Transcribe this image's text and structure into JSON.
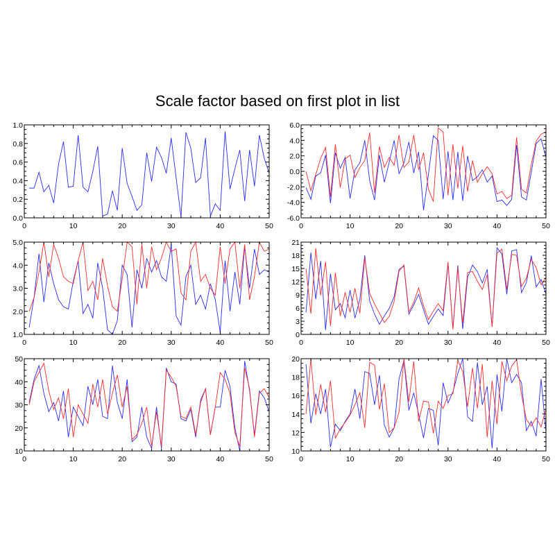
{
  "title": "Scale factor based on first plot in list",
  "colors": {
    "series_1": "#2a2aff",
    "series_2": "#ff2a2a",
    "axis": "#000000"
  },
  "chart_data": [
    {
      "type": "line",
      "xlim": [
        0,
        50
      ],
      "ylim": [
        0,
        1
      ],
      "x_ticks": [
        0,
        10,
        20,
        30,
        40,
        50
      ],
      "y_ticks": [
        0.0,
        0.2,
        0.4,
        0.6,
        0.8,
        1.0
      ],
      "y_tick_labels": [
        "0.0",
        "0.2",
        "0.4",
        "0.6",
        "0.8",
        "1.0"
      ],
      "x": [
        1,
        2,
        3,
        4,
        5,
        6,
        7,
        8,
        9,
        10,
        11,
        12,
        13,
        14,
        15,
        16,
        17,
        18,
        19,
        20,
        21,
        22,
        23,
        24,
        25,
        26,
        27,
        28,
        29,
        30,
        31,
        32,
        33,
        34,
        35,
        36,
        37,
        38,
        39,
        40,
        41,
        42,
        43,
        44,
        45,
        46,
        47,
        48,
        49,
        50
      ],
      "series": [
        {
          "values": [
            0.32,
            0.32,
            0.49,
            0.28,
            0.35,
            0.16,
            0.58,
            0.82,
            0.33,
            0.34,
            0.89,
            0.33,
            0.28,
            0.5,
            0.77,
            0.02,
            0.04,
            0.29,
            0.08,
            0.75,
            0.37,
            0.23,
            0.08,
            0.14,
            0.7,
            0.39,
            0.76,
            0.65,
            0.48,
            0.86,
            0.43,
            0.01,
            0.92,
            0.75,
            0.38,
            0.43,
            0.86,
            0.02,
            0.15,
            0.08,
            0.93,
            0.31,
            0.53,
            0.73,
            0.18,
            0.73,
            0.34,
            0.89,
            0.64,
            0.48
          ]
        }
      ]
    },
    {
      "type": "line",
      "xlim": [
        0,
        50
      ],
      "ylim": [
        -6,
        6
      ],
      "x_ticks": [
        0,
        10,
        20,
        30,
        40,
        50
      ],
      "y_ticks": [
        -6,
        -4,
        -2,
        0,
        2,
        4,
        6
      ],
      "y_tick_labels": [
        "-6.0",
        "-4.0",
        "-2.0",
        "0.0",
        "2.0",
        "4.0",
        "6.0"
      ],
      "x": [
        1,
        2,
        3,
        4,
        5,
        6,
        7,
        8,
        9,
        10,
        11,
        12,
        13,
        14,
        15,
        16,
        17,
        18,
        19,
        20,
        21,
        22,
        23,
        24,
        25,
        26,
        27,
        28,
        29,
        30,
        31,
        32,
        33,
        34,
        35,
        36,
        37,
        38,
        39,
        40,
        41,
        42,
        43,
        44,
        45,
        46,
        47,
        48,
        49,
        50
      ],
      "series": [
        {
          "values": [
            -2.1,
            -3.6,
            -0.6,
            -0.2,
            2.1,
            -4.1,
            2.4,
            0.4,
            1.8,
            -3.5,
            0.2,
            1.1,
            4.0,
            -1.2,
            -3.7,
            2.1,
            -1.4,
            1.2,
            4.0,
            -0.3,
            1.1,
            3.8,
            -0.2,
            2.5,
            -5.0,
            -0.4,
            4.6,
            4.0,
            -3.6,
            2.6,
            -3.7,
            2.5,
            -3.8,
            2.0,
            -1.2,
            -0.7,
            0.2,
            -1.4,
            -0.6,
            -3.9,
            -3.7,
            -4.4,
            -3.6,
            3.4,
            -3.3,
            -3.7,
            -0.1,
            3.6,
            4.2,
            1.8
          ]
        },
        {
          "values": [
            0.0,
            -2.5,
            -0.4,
            1.7,
            3.1,
            -3.3,
            3.5,
            -2.1,
            1.6,
            2.1,
            -0.8,
            0.5,
            1.4,
            5.0,
            -2.8,
            3.2,
            0.5,
            1.8,
            0.8,
            4.7,
            0.5,
            1.2,
            4.7,
            0.2,
            2.4,
            -2.3,
            -3.9,
            5.6,
            5.1,
            -3.1,
            3.5,
            -2.2,
            3.3,
            -2.6,
            1.4,
            -1.4,
            -0.3,
            0.6,
            -0.3,
            -2.9,
            -2.6,
            -3.5,
            -3.1,
            4.4,
            -2.3,
            -2.8,
            0.9,
            3.9,
            4.8,
            5.1
          ]
        }
      ]
    },
    {
      "type": "line",
      "xlim": [
        0,
        50
      ],
      "ylim": [
        1,
        5
      ],
      "x_ticks": [
        0,
        10,
        20,
        30,
        40,
        50
      ],
      "y_ticks": [
        1,
        2,
        3,
        4,
        5
      ],
      "y_tick_labels": [
        "1.0",
        "2.0",
        "3.0",
        "4.0",
        "5.0"
      ],
      "x": [
        1,
        2,
        3,
        4,
        5,
        6,
        7,
        8,
        9,
        10,
        11,
        12,
        13,
        14,
        15,
        16,
        17,
        18,
        19,
        20,
        21,
        22,
        23,
        24,
        25,
        26,
        27,
        28,
        29,
        30,
        31,
        32,
        33,
        34,
        35,
        36,
        37,
        38,
        39,
        40,
        41,
        42,
        43,
        44,
        45,
        46,
        47,
        48,
        49,
        50
      ],
      "series": [
        {
          "values": [
            1.3,
            2.6,
            4.5,
            2.4,
            4.1,
            3.2,
            2.5,
            2.2,
            2.1,
            3.3,
            4.2,
            1.9,
            2.3,
            1.7,
            4.1,
            3.0,
            1.2,
            1.0,
            1.6,
            4.0,
            3.6,
            1.3,
            3.8,
            3.0,
            4.3,
            3.7,
            4.2,
            3.5,
            3.3,
            4.9,
            1.8,
            1.4,
            3.5,
            4.0,
            2.3,
            2.7,
            2.1,
            3.2,
            2.5,
            1.1,
            4.2,
            2.0,
            3.7,
            2.3,
            4.8,
            3.0,
            4.7,
            3.6,
            3.8,
            3.7
          ]
        },
        {
          "values": [
            2.0,
            2.6,
            3.7,
            5.0,
            3.5,
            4.9,
            4.3,
            3.5,
            3.3,
            3.2,
            4.2,
            5.0,
            2.9,
            3.3,
            2.5,
            4.3,
            3.1,
            2.2,
            2.0,
            3.4,
            5.0,
            4.8,
            2.3,
            4.9,
            3.0,
            4.8,
            3.8,
            4.3,
            5.0,
            4.6,
            4.7,
            2.8,
            2.5,
            4.6,
            5.0,
            3.3,
            3.6,
            3.0,
            2.7,
            4.8,
            3.2,
            4.7,
            5.0,
            3.0,
            4.9,
            2.5,
            3.5,
            5.0,
            4.6,
            4.7
          ]
        }
      ]
    },
    {
      "type": "line",
      "xlim": [
        0,
        50
      ],
      "ylim": [
        0,
        21
      ],
      "x_ticks": [
        0,
        10,
        20,
        30,
        40,
        50
      ],
      "y_ticks": [
        0,
        3,
        6,
        9,
        12,
        15,
        18,
        21
      ],
      "y_tick_labels": [
        "0",
        "3",
        "6",
        "9",
        "12",
        "15",
        "18",
        "21"
      ],
      "x": [
        1,
        2,
        3,
        4,
        5,
        6,
        7,
        8,
        9,
        10,
        11,
        12,
        13,
        14,
        15,
        16,
        17,
        18,
        19,
        20,
        21,
        22,
        23,
        24,
        25,
        26,
        27,
        28,
        29,
        30,
        31,
        32,
        33,
        34,
        35,
        36,
        37,
        38,
        39,
        40,
        41,
        42,
        43,
        44,
        45,
        46,
        47,
        48,
        49,
        50
      ],
      "series": [
        {
          "values": [
            5.0,
            18.6,
            8.0,
            16.7,
            1.0,
            13.8,
            5.6,
            7.0,
            3.8,
            10.1,
            3.7,
            8.0,
            18.0,
            7.6,
            4.6,
            2.3,
            4.2,
            5.9,
            8.6,
            14.8,
            15.5,
            4.6,
            6.7,
            9.1,
            5.6,
            2.3,
            4.1,
            5.8,
            4.3,
            16.1,
            1.4,
            15.7,
            1.2,
            13.0,
            15.8,
            14.3,
            11.7,
            14.8,
            1.8,
            19.7,
            18.3,
            9.1,
            19.0,
            19.3,
            9.5,
            11.8,
            17.9,
            10.8,
            12.5,
            9.2
          ]
        },
        {
          "values": [
            15.0,
            4.7,
            19.6,
            8.9,
            16.5,
            1.9,
            14.0,
            4.2,
            9.6,
            5.0,
            10.5,
            4.8,
            17.4,
            9.4,
            6.9,
            4.8,
            2.7,
            4.1,
            7.5,
            14.4,
            15.8,
            5.1,
            7.3,
            10.6,
            6.5,
            3.4,
            5.3,
            7.0,
            5.4,
            16.5,
            1.1,
            15.1,
            2.5,
            14.1,
            14.3,
            12.1,
            10.2,
            13.6,
            1.7,
            18.5,
            19.4,
            10.2,
            18.2,
            18.0,
            10.9,
            12.8,
            17.1,
            15.2,
            11.3,
            12.9
          ]
        }
      ]
    },
    {
      "type": "line",
      "xlim": [
        0,
        50
      ],
      "ylim": [
        10,
        50
      ],
      "x_ticks": [
        0,
        10,
        20,
        30,
        40,
        50
      ],
      "y_ticks": [
        10,
        20,
        30,
        40,
        50
      ],
      "y_tick_labels": [
        "10",
        "20",
        "30",
        "40",
        "50"
      ],
      "x": [
        1,
        2,
        3,
        4,
        5,
        6,
        7,
        8,
        9,
        10,
        11,
        12,
        13,
        14,
        15,
        16,
        17,
        18,
        19,
        20,
        21,
        22,
        23,
        24,
        25,
        26,
        27,
        28,
        29,
        30,
        31,
        32,
        33,
        34,
        35,
        36,
        37,
        38,
        39,
        40,
        41,
        42,
        43,
        44,
        45,
        46,
        47,
        48,
        49,
        50
      ],
      "series": [
        {
          "values": [
            31.0,
            41.0,
            47.0,
            35.0,
            27.0,
            31.0,
            23.0,
            36.0,
            16.0,
            29.0,
            25.0,
            21.0,
            38.0,
            30.0,
            41.0,
            25.0,
            24.0,
            47.0,
            31.0,
            24.0,
            41.0,
            14.0,
            16.0,
            29.0,
            16.0,
            11.0,
            29.0,
            11.0,
            46.0,
            40.0,
            39.0,
            24.0,
            23.0,
            28.0,
            16.0,
            32.0,
            37.0,
            17.0,
            29.0,
            29.0,
            45.0,
            38.0,
            20.0,
            10.0,
            49.0,
            36.0,
            17.0,
            36.0,
            33.0,
            27.0
          ]
        },
        {
          "values": [
            30.0,
            40.0,
            44.0,
            48.0,
            36.0,
            28.0,
            33.0,
            24.0,
            37.0,
            16.0,
            30.0,
            26.0,
            22.0,
            39.0,
            29.0,
            41.0,
            26.0,
            35.0,
            43.0,
            29.0,
            38.0,
            15.0,
            17.0,
            22.0,
            29.0,
            12.0,
            27.0,
            12.0,
            45.0,
            42.0,
            38.0,
            25.0,
            24.0,
            29.0,
            17.0,
            31.0,
            37.0,
            17.0,
            29.0,
            44.0,
            41.0,
            35.0,
            18.0,
            12.0,
            46.0,
            37.0,
            16.0,
            35.0,
            37.0,
            33.0
          ]
        }
      ]
    },
    {
      "type": "line",
      "xlim": [
        0,
        50
      ],
      "ylim": [
        10,
        20
      ],
      "x_ticks": [
        0,
        10,
        20,
        30,
        40,
        50
      ],
      "y_ticks": [
        10,
        12,
        14,
        16,
        18,
        20
      ],
      "y_tick_labels": [
        "10",
        "12",
        "14",
        "16",
        "18",
        "20"
      ],
      "x": [
        1,
        2,
        3,
        4,
        5,
        6,
        7,
        8,
        9,
        10,
        11,
        12,
        13,
        14,
        15,
        16,
        17,
        18,
        19,
        20,
        21,
        22,
        23,
        24,
        25,
        26,
        27,
        28,
        29,
        30,
        31,
        32,
        33,
        34,
        35,
        36,
        37,
        38,
        39,
        40,
        41,
        42,
        43,
        44,
        45,
        46,
        47,
        48,
        49,
        50
      ],
      "series": [
        {
          "values": [
            19.4,
            13.0,
            16.2,
            14.0,
            16.7,
            10.4,
            12.9,
            12.2,
            13.2,
            14.0,
            16.7,
            13.5,
            18.6,
            18.4,
            15.0,
            18.2,
            12.8,
            11.5,
            12.5,
            17.8,
            19.8,
            14.4,
            16.3,
            14.0,
            11.4,
            14.6,
            14.4,
            10.6,
            17.4,
            15.2,
            16.4,
            18.4,
            20.0,
            13.7,
            13.2,
            19.6,
            15.0,
            17.0,
            10.3,
            18.3,
            14.3,
            20.0,
            17.4,
            18.3,
            17.4,
            12.2,
            13.2,
            11.6,
            17.8,
            12.0
          ]
        },
        {
          "values": [
            14.0,
            20.0,
            13.9,
            17.2,
            14.2,
            17.6,
            11.4,
            12.4,
            13.1,
            13.9,
            15.0,
            16.3,
            12.5,
            19.6,
            19.3,
            14.5,
            17.3,
            12.0,
            12.5,
            14.2,
            20.0,
            15.3,
            19.7,
            13.2,
            15.4,
            15.3,
            11.9,
            15.4,
            14.6,
            16.0,
            16.2,
            19.8,
            18.6,
            14.8,
            19.0,
            14.6,
            19.4,
            11.5,
            17.6,
            12.9,
            19.7,
            17.6,
            19.2,
            19.9,
            16.1,
            13.4,
            12.7,
            13.6,
            12.6,
            14.6
          ]
        }
      ]
    }
  ]
}
